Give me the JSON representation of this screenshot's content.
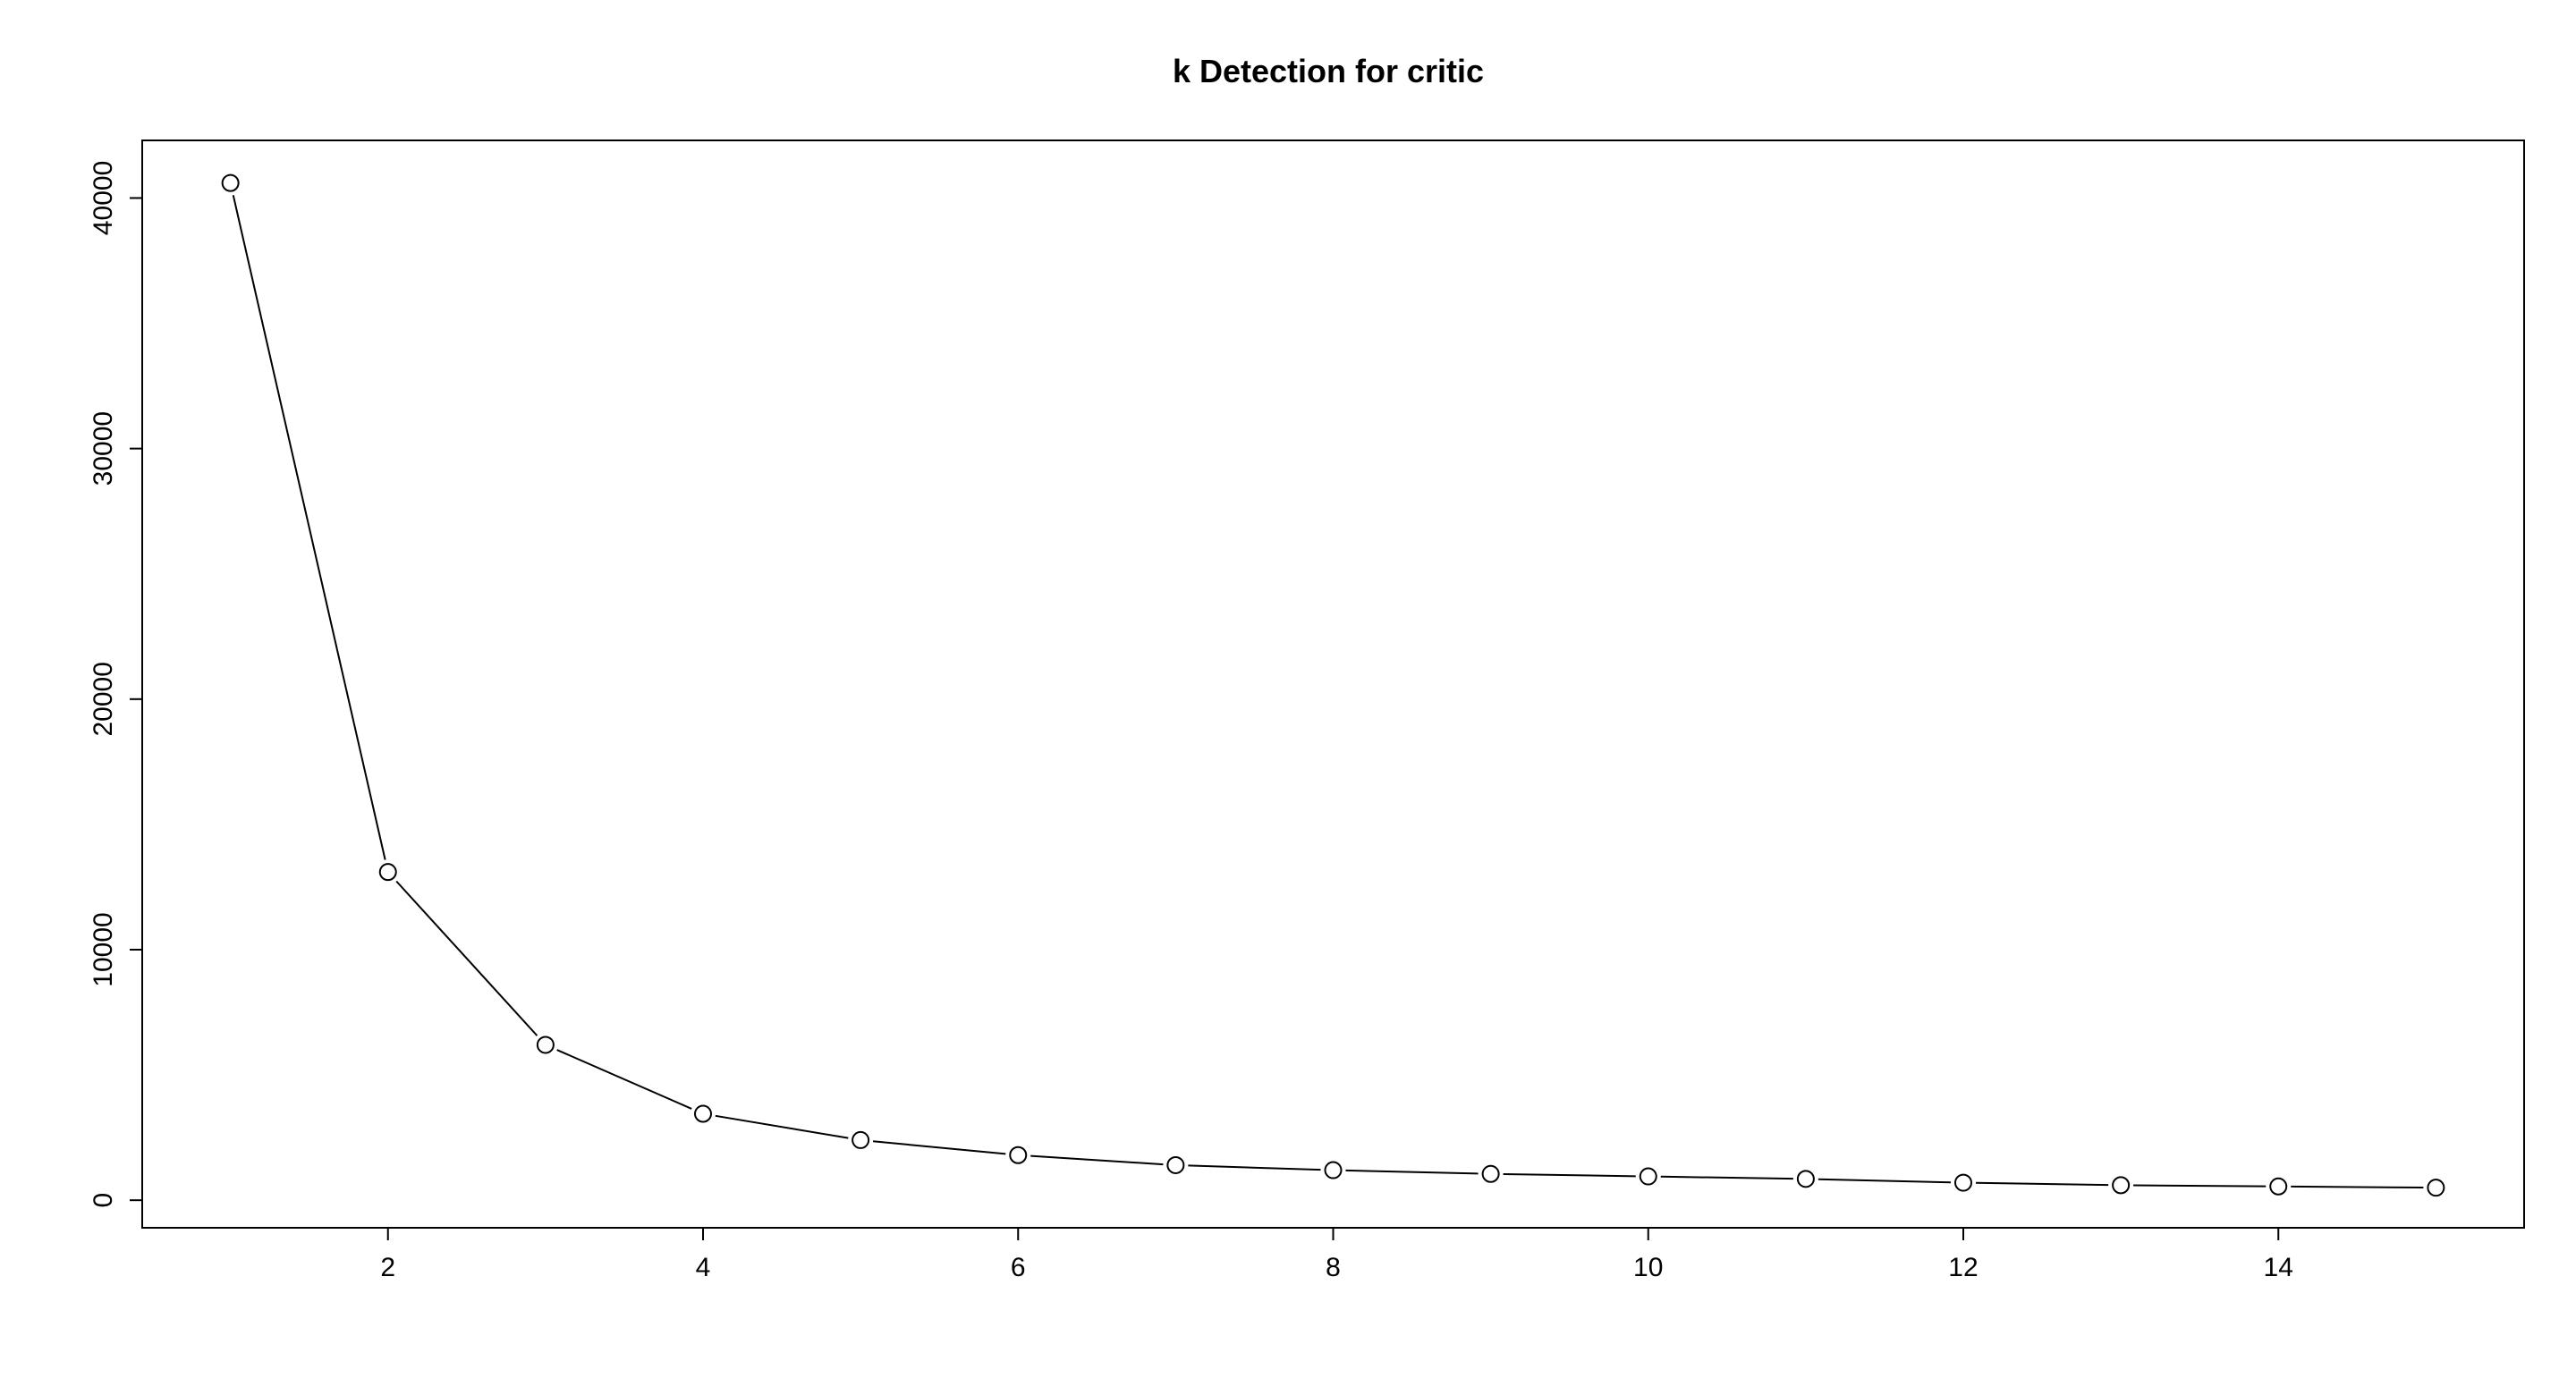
{
  "chart_data": {
    "type": "line",
    "title": "k Detection for critic",
    "xlabel": "",
    "ylabel": "",
    "x": [
      1,
      2,
      3,
      4,
      5,
      6,
      7,
      8,
      9,
      10,
      11,
      12,
      13,
      14,
      15
    ],
    "series": [
      {
        "values": [
          40600,
          13100,
          6200,
          3450,
          2400,
          1800,
          1400,
          1200,
          1050,
          950,
          850,
          700,
          600,
          550,
          500
        ],
        "marker": "open-circle",
        "color": "#000000"
      }
    ],
    "xlim": [
      0.44,
      15.56
    ],
    "ylim": [
      -1100,
      42300
    ],
    "x_ticks": [
      2,
      4,
      6,
      8,
      10,
      12,
      14
    ],
    "x_tick_labels": [
      "2",
      "4",
      "6",
      "8",
      "10",
      "12",
      "14"
    ],
    "y_ticks": [
      0,
      10000,
      20000,
      30000,
      40000
    ],
    "y_tick_labels": [
      "0",
      "10000",
      "20000",
      "30000",
      "40000"
    ],
    "grid": false,
    "legend": "none"
  }
}
